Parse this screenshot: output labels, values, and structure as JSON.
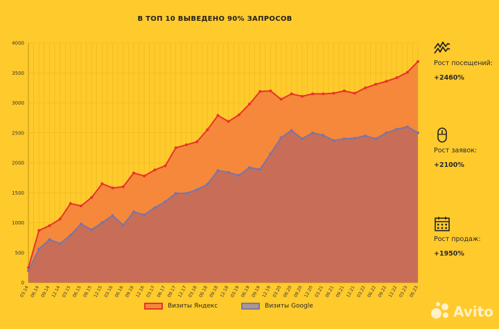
{
  "chart_data": {
    "type": "area",
    "title": "В ТОП 10 ВЫВЕДЕНО 90% ЗАПРОСОВ",
    "xlabel": "",
    "ylabel": "",
    "ylim": [
      0,
      4000
    ],
    "yticks": [
      0,
      500,
      1000,
      1500,
      2000,
      2500,
      3000,
      3500,
      4000
    ],
    "grid": true,
    "legend_position": "bottom",
    "categories": [
      "03.14",
      "06.14",
      "09.14",
      "12.14",
      "03.15",
      "06.15",
      "09.15",
      "12.15",
      "03.16",
      "06.16",
      "09.16",
      "12.16",
      "03.17",
      "06.17",
      "09.17",
      "12.17",
      "03.18",
      "06.18",
      "09.18",
      "12.18",
      "03.19",
      "06.19",
      "09.19",
      "12.19",
      "03.20",
      "06.20",
      "09.20",
      "12.20",
      "03.21",
      "06.21",
      "09.21",
      "12.21",
      "03.22",
      "06.22",
      "09.22",
      "12.22",
      "03.23",
      "06.23"
    ],
    "x": [
      "03.14",
      "",
      "06.14",
      "",
      "09.14",
      "",
      "12.14",
      "",
      "03.15",
      "",
      "06.15",
      "",
      "09.15",
      "",
      "12.15",
      "",
      "03.16",
      "",
      "06.16",
      "",
      "09.16",
      "",
      "12.16",
      "",
      "03.17",
      "",
      "06.17",
      "",
      "09.17",
      "",
      "12.17",
      "",
      "03.18",
      "",
      "06.18",
      "",
      "09.18",
      "",
      "12.18",
      "",
      "03.19",
      "",
      "06.19",
      "",
      "09.19",
      "",
      "12.19",
      "",
      "03.20",
      "",
      "06.20",
      "",
      "09.20",
      "",
      "12.20",
      "",
      "03.21",
      "",
      "06.21",
      "",
      "09.21",
      "",
      "12.21",
      "",
      "03.22",
      "",
      "06.22",
      "",
      "09.22",
      "",
      "12.22",
      "",
      "03.23",
      "",
      "06.23"
    ],
    "series": [
      {
        "name": "Визиты Яндекс",
        "color": "#f5883a",
        "line_color": "#e8322a",
        "values": [
          250,
          870,
          950,
          1060,
          1320,
          1280,
          1420,
          1650,
          1580,
          1600,
          1830,
          1780,
          1880,
          1950,
          2250,
          2300,
          2350,
          2550,
          2790,
          2690,
          2800,
          2980,
          3190,
          3200,
          3060,
          3150,
          3110,
          3150,
          3150,
          3160,
          3200,
          3160,
          3250,
          3310,
          3360,
          3420,
          3510,
          3690
        ]
      },
      {
        "name": "Визиты Google",
        "color": "#c86e58",
        "line_color": "#7b74a8",
        "values": [
          200,
          560,
          720,
          650,
          790,
          980,
          880,
          1000,
          1120,
          960,
          1180,
          1130,
          1250,
          1350,
          1490,
          1490,
          1550,
          1640,
          1870,
          1840,
          1790,
          1920,
          1890,
          2150,
          2420,
          2540,
          2400,
          2500,
          2460,
          2370,
          2400,
          2410,
          2450,
          2400,
          2500,
          2560,
          2600,
          2500
        ]
      }
    ]
  },
  "sidebar": {
    "items": [
      {
        "label": "Рост посещений:",
        "value": "+2460%",
        "icon": "trend-icon"
      },
      {
        "label": "Рост заявок:",
        "value": "+2100%",
        "icon": "mouse-icon"
      },
      {
        "label": "Рост продаж:",
        "value": "+1950%",
        "icon": "calendar-icon"
      }
    ]
  },
  "legend": {
    "yandex": "Визиты Яндекс",
    "google": "Визиты Google"
  },
  "watermark": "Avito",
  "colors": {
    "background": "#ffca2c",
    "yandex_fill": "#f5883a",
    "yandex_line": "#e8322a",
    "google_fill": "#c86e58",
    "google_line": "#7b74a8"
  }
}
